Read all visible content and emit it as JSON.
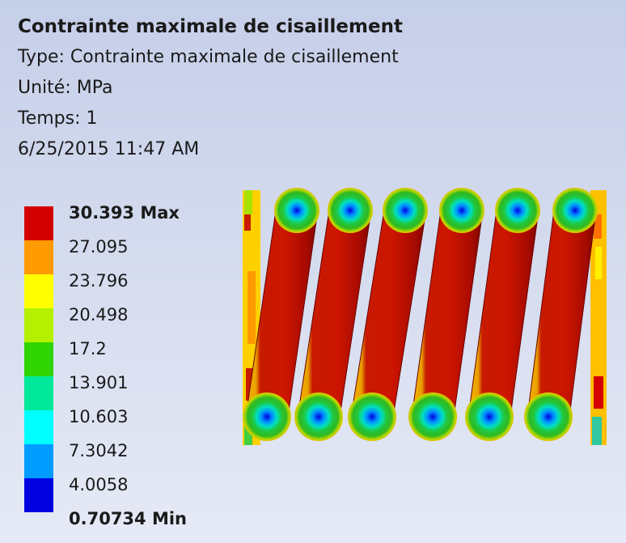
{
  "header": {
    "title": "Contrainte maximale de cisaillement",
    "type": "Type: Contrainte maximale de cisaillement",
    "unit": "Unité: MPa",
    "time": "Temps: 1",
    "date": "6/25/2015 11:47 AM"
  },
  "legend": {
    "max_label": "30.393 Max",
    "min_label": "0.70734 Min",
    "labels": [
      "27.095",
      "23.796",
      "20.498",
      "17.2",
      "13.901",
      "10.603",
      "7.3042",
      "4.0058"
    ],
    "colors": [
      "#d40000",
      "#ff9a00",
      "#ffff00",
      "#b4f000",
      "#30d400",
      "#00e89a",
      "#00ffff",
      "#009cff",
      "#0000e0"
    ]
  }
}
